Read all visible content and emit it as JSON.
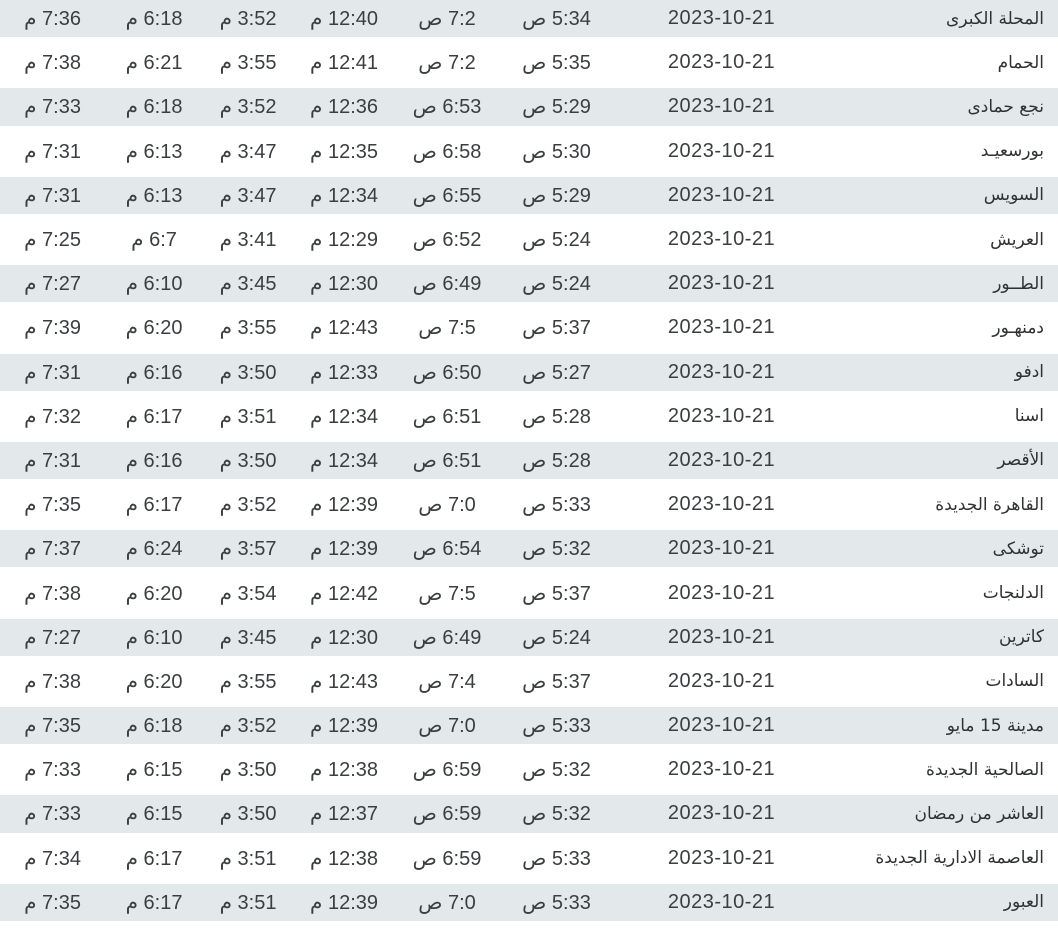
{
  "colors": {
    "row_alt_background": "#e3e9eb",
    "row_background": "#ffffff",
    "text": "#3b3e40"
  },
  "table": {
    "rows": [
      {
        "city": "المحلة الكبرى",
        "date": "2023-10-21",
        "fajr": "5:34 ص",
        "sunrise": "7:2 ص",
        "dhuhr": "12:40 م",
        "asr": "3:52 م",
        "maghrib": "6:18 م",
        "isha": "7:36 م"
      },
      {
        "city": "الحمام",
        "date": "2023-10-21",
        "fajr": "5:35 ص",
        "sunrise": "7:2 ص",
        "dhuhr": "12:41 م",
        "asr": "3:55 م",
        "maghrib": "6:21 م",
        "isha": "7:38 م"
      },
      {
        "city": "نجع حمادى",
        "date": "2023-10-21",
        "fajr": "5:29 ص",
        "sunrise": "6:53 ص",
        "dhuhr": "12:36 م",
        "asr": "3:52 م",
        "maghrib": "6:18 م",
        "isha": "7:33 م"
      },
      {
        "city": "بورسعيـد",
        "date": "2023-10-21",
        "fajr": "5:30 ص",
        "sunrise": "6:58 ص",
        "dhuhr": "12:35 م",
        "asr": "3:47 م",
        "maghrib": "6:13 م",
        "isha": "7:31 م"
      },
      {
        "city": "السويس",
        "date": "2023-10-21",
        "fajr": "5:29 ص",
        "sunrise": "6:55 ص",
        "dhuhr": "12:34 م",
        "asr": "3:47 م",
        "maghrib": "6:13 م",
        "isha": "7:31 م"
      },
      {
        "city": "العريش",
        "date": "2023-10-21",
        "fajr": "5:24 ص",
        "sunrise": "6:52 ص",
        "dhuhr": "12:29 م",
        "asr": "3:41 م",
        "maghrib": "6:7 م",
        "isha": "7:25 م"
      },
      {
        "city": "الطــور",
        "date": "2023-10-21",
        "fajr": "5:24 ص",
        "sunrise": "6:49 ص",
        "dhuhr": "12:30 م",
        "asr": "3:45 م",
        "maghrib": "6:10 م",
        "isha": "7:27 م"
      },
      {
        "city": "دمنهـور",
        "date": "2023-10-21",
        "fajr": "5:37 ص",
        "sunrise": "7:5 ص",
        "dhuhr": "12:43 م",
        "asr": "3:55 م",
        "maghrib": "6:20 م",
        "isha": "7:39 م"
      },
      {
        "city": "ادفو",
        "date": "2023-10-21",
        "fajr": "5:27 ص",
        "sunrise": "6:50 ص",
        "dhuhr": "12:33 م",
        "asr": "3:50 م",
        "maghrib": "6:16 م",
        "isha": "7:31 م"
      },
      {
        "city": "اسنا",
        "date": "2023-10-21",
        "fajr": "5:28 ص",
        "sunrise": "6:51 ص",
        "dhuhr": "12:34 م",
        "asr": "3:51 م",
        "maghrib": "6:17 م",
        "isha": "7:32 م"
      },
      {
        "city": "الأقصر",
        "date": "2023-10-21",
        "fajr": "5:28 ص",
        "sunrise": "6:51 ص",
        "dhuhr": "12:34 م",
        "asr": "3:50 م",
        "maghrib": "6:16 م",
        "isha": "7:31 م"
      },
      {
        "city": "القاهرة الجديدة",
        "date": "2023-10-21",
        "fajr": "5:33 ص",
        "sunrise": "7:0 ص",
        "dhuhr": "12:39 م",
        "asr": "3:52 م",
        "maghrib": "6:17 م",
        "isha": "7:35 م"
      },
      {
        "city": "توشكى",
        "date": "2023-10-21",
        "fajr": "5:32 ص",
        "sunrise": "6:54 ص",
        "dhuhr": "12:39 م",
        "asr": "3:57 م",
        "maghrib": "6:24 م",
        "isha": "7:37 م"
      },
      {
        "city": "الدلنجات",
        "date": "2023-10-21",
        "fajr": "5:37 ص",
        "sunrise": "7:5 ص",
        "dhuhr": "12:42 م",
        "asr": "3:54 م",
        "maghrib": "6:20 م",
        "isha": "7:38 م"
      },
      {
        "city": "كاترين",
        "date": "2023-10-21",
        "fajr": "5:24 ص",
        "sunrise": "6:49 ص",
        "dhuhr": "12:30 م",
        "asr": "3:45 م",
        "maghrib": "6:10 م",
        "isha": "7:27 م"
      },
      {
        "city": "السادات",
        "date": "2023-10-21",
        "fajr": "5:37 ص",
        "sunrise": "7:4 ص",
        "dhuhr": "12:43 م",
        "asr": "3:55 م",
        "maghrib": "6:20 م",
        "isha": "7:38 م"
      },
      {
        "city": "مدينة 15 مايو",
        "date": "2023-10-21",
        "fajr": "5:33 ص",
        "sunrise": "7:0 ص",
        "dhuhr": "12:39 م",
        "asr": "3:52 م",
        "maghrib": "6:18 م",
        "isha": "7:35 م"
      },
      {
        "city": "الصالحية الجديدة",
        "date": "2023-10-21",
        "fajr": "5:32 ص",
        "sunrise": "6:59 ص",
        "dhuhr": "12:38 م",
        "asr": "3:50 م",
        "maghrib": "6:15 م",
        "isha": "7:33 م"
      },
      {
        "city": "العاشر من رمضان",
        "date": "2023-10-21",
        "fajr": "5:32 ص",
        "sunrise": "6:59 ص",
        "dhuhr": "12:37 م",
        "asr": "3:50 م",
        "maghrib": "6:15 م",
        "isha": "7:33 م"
      },
      {
        "city": "العاصمة الادارية الجديدة",
        "date": "2023-10-21",
        "fajr": "5:33 ص",
        "sunrise": "6:59 ص",
        "dhuhr": "12:38 م",
        "asr": "3:51 م",
        "maghrib": "6:17 م",
        "isha": "7:34 م"
      },
      {
        "city": "العبور",
        "date": "2023-10-21",
        "fajr": "5:33 ص",
        "sunrise": "7:0 ص",
        "dhuhr": "12:39 م",
        "asr": "3:51 م",
        "maghrib": "6:17 م",
        "isha": "7:35 م"
      }
    ]
  }
}
